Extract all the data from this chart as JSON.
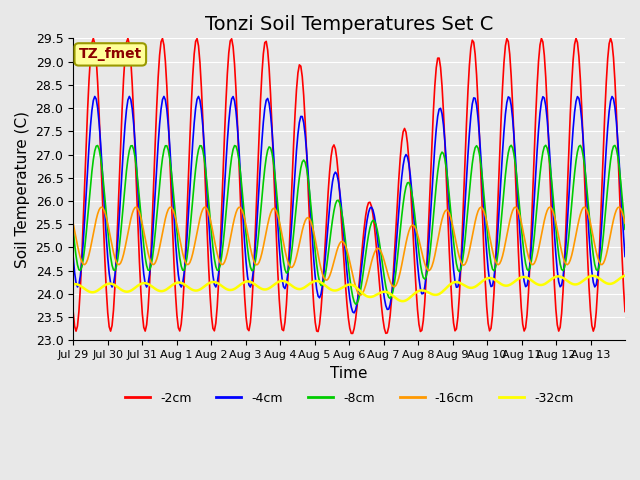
{
  "title": "Tonzi Soil Temperatures Set C",
  "xlabel": "Time",
  "ylabel": "Soil Temperature (C)",
  "ylim": [
    23.0,
    29.5
  ],
  "yticks": [
    23.0,
    23.5,
    24.0,
    24.5,
    25.0,
    25.5,
    26.0,
    26.5,
    27.0,
    27.5,
    28.0,
    28.5,
    29.0,
    29.5
  ],
  "xtick_labels": [
    "Jul 29",
    "Jul 30",
    "Jul 31",
    "Aug 1",
    "Aug 2",
    "Aug 3",
    "Aug 4",
    "Aug 5",
    "Aug 6",
    "Aug 7",
    "Aug 8",
    "Aug 9",
    "Aug 10",
    "Aug 11",
    "Aug 12",
    "Aug 13"
  ],
  "colors": {
    "-2cm": "#ff0000",
    "-4cm": "#0000ff",
    "-8cm": "#00cc00",
    "-16cm": "#ff9900",
    "-32cm": "#ffff00"
  },
  "legend_label": "TZ_fmet",
  "legend_bbox_facecolor": "#ffff99",
  "legend_bbox_edgecolor": "#999900",
  "background_color": "#e8e8e8",
  "grid_color": "#ffffff",
  "title_fontsize": 14,
  "axis_label_fontsize": 11,
  "n_days": 16
}
